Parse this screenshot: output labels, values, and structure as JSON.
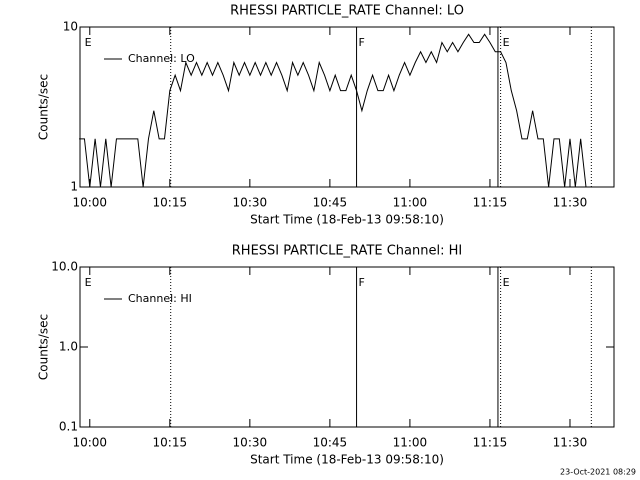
{
  "chart_data": [
    {
      "type": "line",
      "title": "RHESSI PARTICLE_RATE Channel: LO",
      "ylabel": "Counts/sec",
      "xlabel": "Start Time (18-Feb-13 09:58:10)",
      "xlim": [
        "09:58:10",
        "11:38:15"
      ],
      "xticks": [
        "10:00",
        "10:15",
        "10:30",
        "10:45",
        "11:00",
        "11:15",
        "11:30"
      ],
      "ylim": [
        1,
        10
      ],
      "yticks": [
        1,
        10
      ],
      "log_y": true,
      "legend": "upper left",
      "x": [
        "09:58",
        "09:59",
        "10:00",
        "10:01",
        "10:02",
        "10:03",
        "10:04",
        "10:05",
        "10:06",
        "10:07",
        "10:08",
        "10:09",
        "10:10",
        "10:11",
        "10:12",
        "10:13",
        "10:14",
        "10:15",
        "10:16",
        "10:17",
        "10:18",
        "10:19",
        "10:20",
        "10:21",
        "10:22",
        "10:23",
        "10:24",
        "10:25",
        "10:26",
        "10:27",
        "10:28",
        "10:29",
        "10:30",
        "10:31",
        "10:32",
        "10:33",
        "10:34",
        "10:35",
        "10:36",
        "10:37",
        "10:38",
        "10:39",
        "10:40",
        "10:41",
        "10:42",
        "10:43",
        "10:44",
        "10:45",
        "10:46",
        "10:47",
        "10:48",
        "10:49",
        "10:50",
        "10:51",
        "10:52",
        "10:53",
        "10:54",
        "10:55",
        "10:56",
        "10:57",
        "10:58",
        "10:59",
        "11:00",
        "11:01",
        "11:02",
        "11:03",
        "11:04",
        "11:05",
        "11:06",
        "11:07",
        "11:08",
        "11:09",
        "11:10",
        "11:11",
        "11:12",
        "11:13",
        "11:14",
        "11:15",
        "11:16",
        "11:17",
        "11:18",
        "11:19",
        "11:20",
        "11:21",
        "11:22",
        "11:23",
        "11:24",
        "11:25",
        "11:26",
        "11:27",
        "11:28",
        "11:29",
        "11:30",
        "11:31",
        "11:32",
        "11:33"
      ],
      "series": [
        {
          "name": "Channel: LO",
          "color": "#000000",
          "values": [
            2,
            2,
            1,
            2,
            1,
            2,
            1,
            2,
            2,
            2,
            2,
            2,
            1,
            2,
            3,
            2,
            2,
            4,
            5,
            4,
            6,
            5,
            6,
            5,
            6,
            5,
            6,
            5,
            4,
            6,
            5,
            6,
            5,
            6,
            5,
            6,
            5,
            6,
            5,
            4,
            6,
            5,
            6,
            5,
            4,
            6,
            5,
            4,
            5,
            4,
            4,
            5,
            4,
            3,
            4,
            5,
            4,
            4,
            5,
            4,
            5,
            6,
            5,
            6,
            7,
            6,
            7,
            6,
            8,
            7,
            8,
            7,
            8,
            9,
            8,
            8,
            9,
            8,
            7,
            7,
            6,
            4,
            3,
            2,
            2,
            3,
            2,
            2,
            1,
            2,
            2,
            1,
            2,
            1,
            2,
            1
          ]
        }
      ],
      "markers": [
        {
          "x": "09:58:40",
          "label": "E"
        },
        {
          "x": "10:15:10",
          "style": "dotted"
        },
        {
          "x": "10:50",
          "style": "solid",
          "label": "F"
        },
        {
          "x": "11:16:30",
          "style": "solid"
        },
        {
          "x": "11:17",
          "style": "dotted",
          "label": "E"
        },
        {
          "x": "11:34",
          "style": "dotted"
        }
      ]
    },
    {
      "type": "line",
      "title": "RHESSI PARTICLE_RATE Channel: HI",
      "ylabel": "Counts/sec",
      "xlabel": "Start Time (18-Feb-13 09:58:10)",
      "xlim": [
        "09:58:10",
        "11:38:15"
      ],
      "xticks": [
        "10:00",
        "10:15",
        "10:30",
        "10:45",
        "11:00",
        "11:15",
        "11:30"
      ],
      "ylim": [
        0.1,
        10
      ],
      "yticks": [
        0.1,
        {
          "value": 1,
          "label": "1.0"
        },
        {
          "value": 10,
          "label": "10.0"
        }
      ],
      "log_y": true,
      "legend": "upper left",
      "x": [],
      "series": [
        {
          "name": "Channel: HI",
          "color": "#000000",
          "values": []
        }
      ],
      "markers": [
        {
          "x": "09:58:40",
          "label": "E"
        },
        {
          "x": "10:15:10",
          "style": "dotted"
        },
        {
          "x": "10:50",
          "style": "solid",
          "label": "F"
        },
        {
          "x": "11:16:30",
          "style": "solid"
        },
        {
          "x": "11:17",
          "style": "dotted",
          "label": "E"
        },
        {
          "x": "11:34",
          "style": "dotted"
        }
      ]
    }
  ],
  "footer": "23-Oct-2021 08:29"
}
